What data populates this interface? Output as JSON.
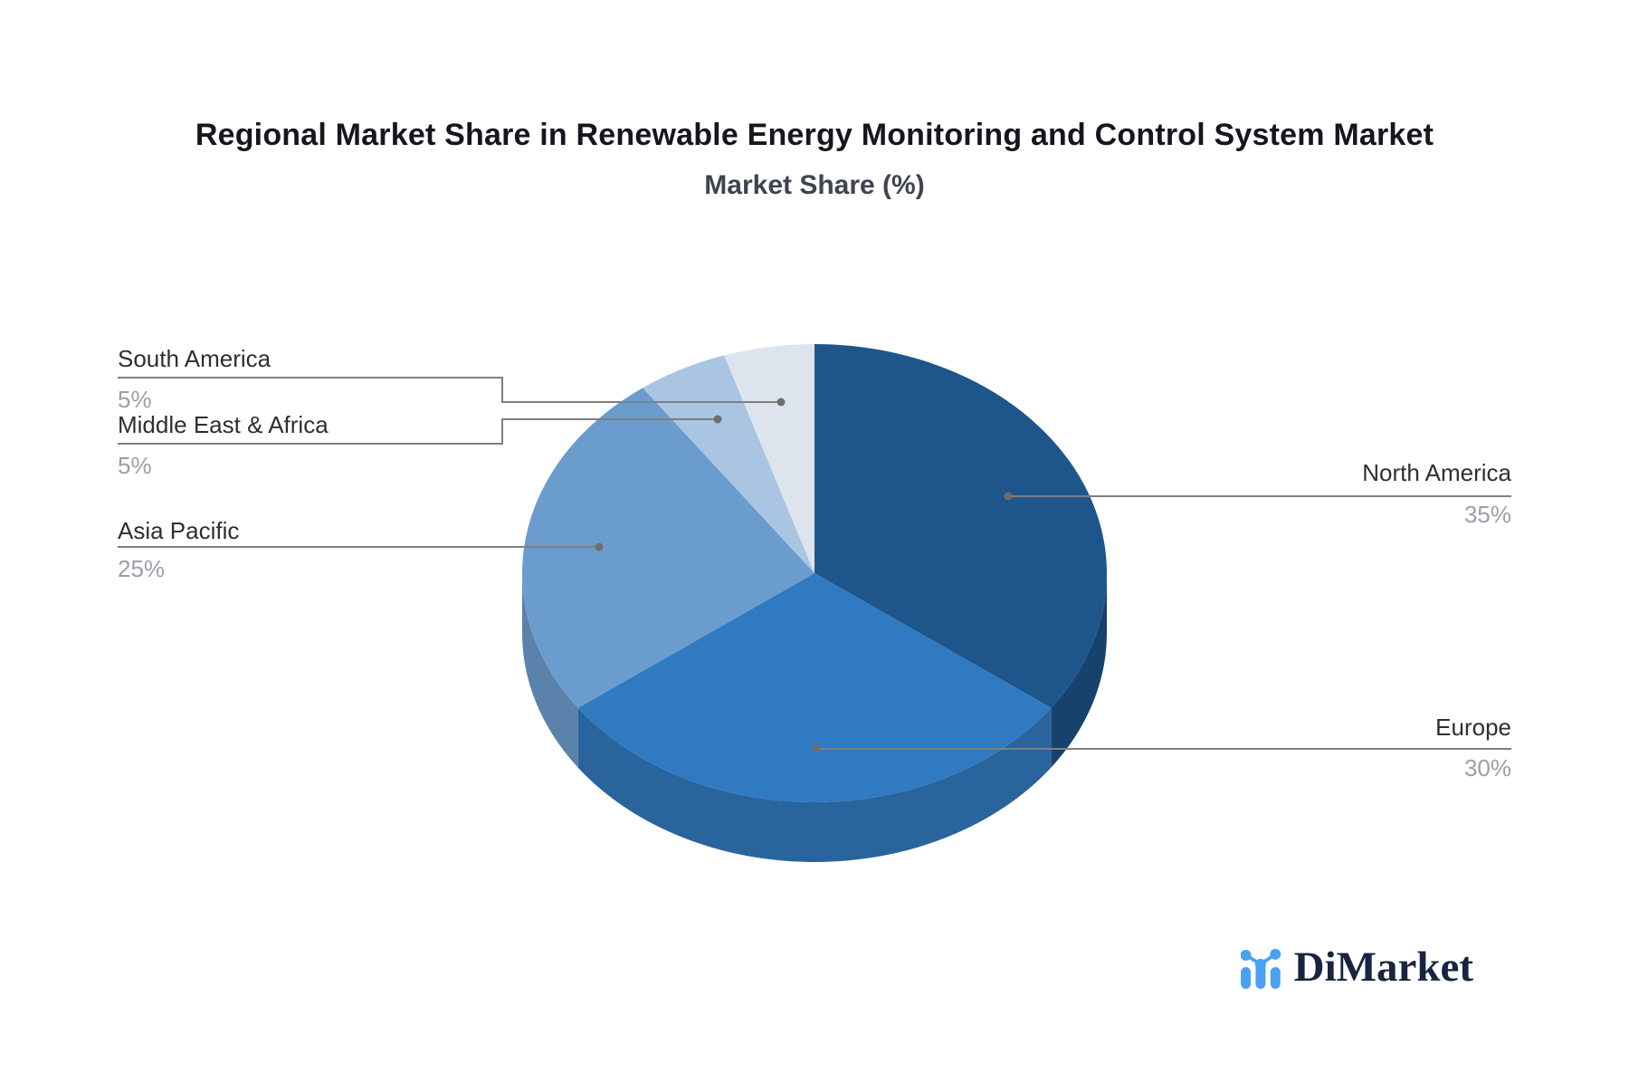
{
  "page": {
    "background": "#ffffff"
  },
  "chart_data": {
    "type": "pie",
    "title": "Regional Market Share in Renewable Energy Monitoring and Control System Market",
    "subtitle": "Market Share (%)",
    "unit": "%",
    "effect": "3d",
    "direction": "clockwise",
    "start_angle_deg": 0,
    "legend_position": "callout-labels",
    "slices": [
      {
        "label": "North America",
        "value": 35,
        "pct": "35%",
        "color": "#1e568c",
        "side_color": "#17426b"
      },
      {
        "label": "Europe",
        "value": 30,
        "pct": "30%",
        "color": "#2f7ac0",
        "side_color": "#2a649d"
      },
      {
        "label": "Asia Pacific",
        "value": 25,
        "pct": "25%",
        "color": "#6a9cce",
        "side_color": "#5b82aa"
      },
      {
        "label": "Middle East & Africa",
        "value": 5,
        "pct": "5%",
        "color": "#aac5e2",
        "side_color": "#8fa9c4"
      },
      {
        "label": "South America",
        "value": 5,
        "pct": "5%",
        "color": "#dee4ee",
        "side_color": "#b9c4d4"
      }
    ]
  },
  "style": {
    "title_color": "#16161f",
    "subtitle_color": "#3e4450",
    "label_color": "#2e2f33",
    "pct_color": "#9aa0a8",
    "leader_color": "#7f7f7f"
  },
  "logo": {
    "text": "DiMarket",
    "icon": "bar-line-chart-icon",
    "icon_color": "#4aa0f2",
    "text_color": "#182440"
  }
}
